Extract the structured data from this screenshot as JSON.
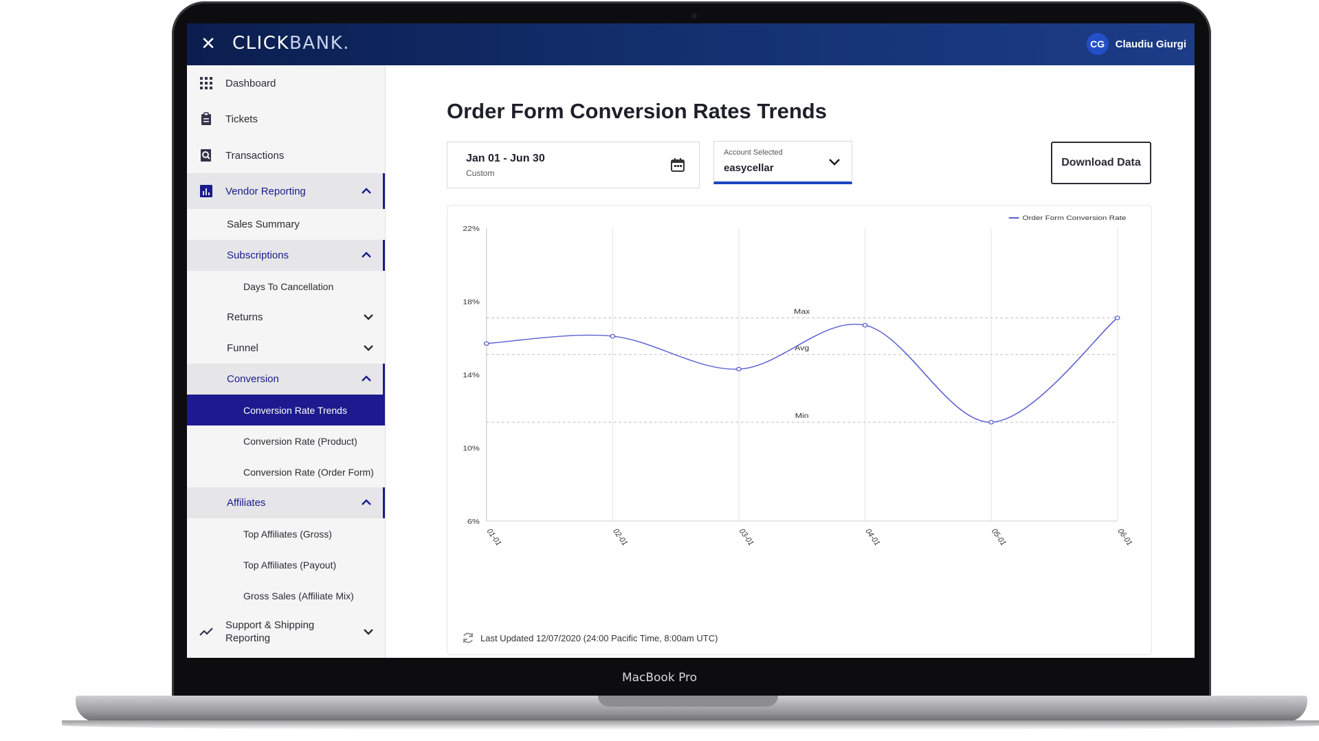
{
  "device": {
    "label": "MacBook Pro"
  },
  "topbar": {
    "close_icon": "close-icon",
    "logo_text_bold": "CLICK",
    "logo_text_thin": "BANK.",
    "avatar_initials": "CG",
    "user_name": "Claudiu Giurgi"
  },
  "sidebar": {
    "items": [
      {
        "label": "Dashboard",
        "icon": "grid-icon"
      },
      {
        "label": "Tickets",
        "icon": "clipboard-icon"
      },
      {
        "label": "Transactions",
        "icon": "search-doc-icon"
      },
      {
        "label": "Vendor Reporting",
        "icon": "bar-chart-icon"
      },
      {
        "label": "Sales Summary"
      },
      {
        "label": "Subscriptions"
      },
      {
        "label": "Days To Cancellation"
      },
      {
        "label": "Returns"
      },
      {
        "label": "Funnel"
      },
      {
        "label": "Conversion"
      },
      {
        "label": "Conversion Rate Trends"
      },
      {
        "label": "Conversion Rate (Product)"
      },
      {
        "label": "Conversion Rate (Order Form)"
      },
      {
        "label": "Affiliates"
      },
      {
        "label": "Top Affiliates (Gross)"
      },
      {
        "label": "Top Affiliates (Payout)"
      },
      {
        "label": "Gross Sales (Affiliate Mix)"
      },
      {
        "label": "Support & Shipping Reporting",
        "icon": "trend-icon"
      }
    ]
  },
  "main": {
    "title": "Order Form Conversion Rates Trends",
    "date_range": "Jan 01 - Jun 30",
    "date_mode": "Custom",
    "account_label": "Account Selected",
    "account_value": "easycellar",
    "download_label": "Download Data",
    "last_updated": "Last Updated 12/07/2020 (24:00 Pacific Time, 8:00am UTC)"
  },
  "chart_data": {
    "type": "line",
    "title": "",
    "xlabel": "",
    "ylabel": "",
    "x": [
      "01-01",
      "02-01",
      "03-01",
      "04-01",
      "05-01",
      "06-01"
    ],
    "series": [
      {
        "name": "Order Form Conversion Rate",
        "values": [
          15.7,
          16.1,
          14.3,
          16.7,
          11.4,
          17.1
        ],
        "color": "#5a5fd0"
      }
    ],
    "yticks": [
      "22%",
      "18%",
      "14%",
      "10%",
      "6%"
    ],
    "ylim": [
      6,
      22
    ],
    "reference_lines": [
      {
        "label": "Max",
        "value": 17.1
      },
      {
        "label": "Avg",
        "value": 15.1
      },
      {
        "label": "Min",
        "value": 11.4
      }
    ],
    "legend_position": "top-right",
    "grid": "vertical"
  },
  "colors": {
    "accent": "#1c1a8e",
    "topbar": "#143272",
    "line": "#5a5fd0"
  }
}
